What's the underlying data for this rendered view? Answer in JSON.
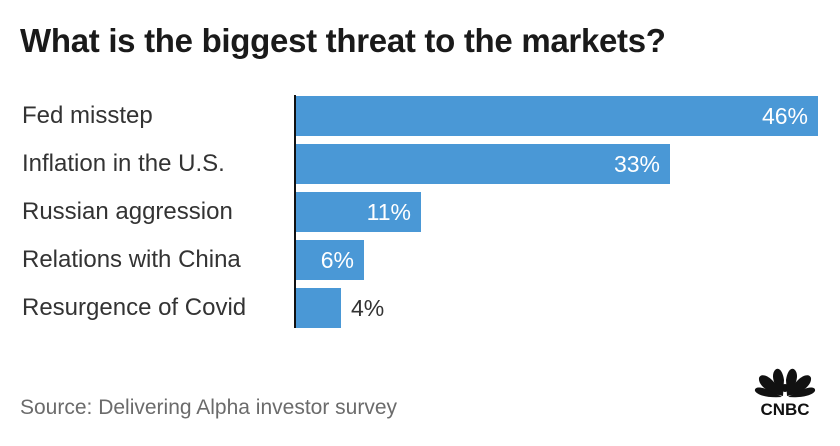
{
  "chart_data": {
    "type": "bar",
    "orientation": "horizontal",
    "title": "What is the biggest threat to the markets?",
    "categories": [
      "Fed misstep",
      "Inflation in the U.S.",
      "Russian aggression",
      "Relations with China",
      "Resurgence of Covid"
    ],
    "values": [
      46,
      33,
      11,
      6,
      4
    ],
    "value_labels": [
      "46%",
      "33%",
      "11%",
      "6%",
      "4%"
    ],
    "xlabel": "",
    "ylabel": "",
    "xlim": [
      0,
      46
    ],
    "grid": false,
    "bar_color": "#4a98d6"
  },
  "source": "Source: Delivering Alpha investor survey",
  "logo": {
    "text": "CNBC",
    "icon": "peacock-icon"
  }
}
